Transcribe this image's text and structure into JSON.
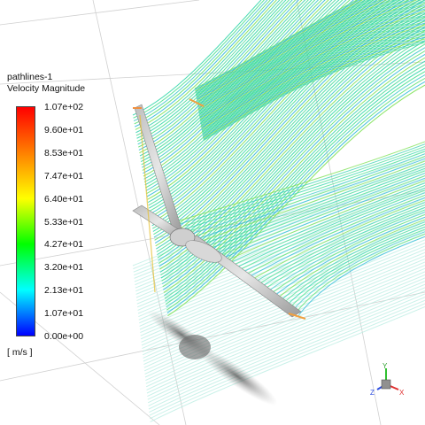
{
  "legend": {
    "title": "pathlines-1",
    "quantity": "Velocity Magnitude",
    "units": "[ m/s ]",
    "tick_labels": [
      "1.07e+02",
      "9.60e+01",
      "8.53e+01",
      "7.47e+01",
      "6.40e+01",
      "5.33e+01",
      "4.27e+01",
      "3.20e+01",
      "2.13e+01",
      "1.07e+01",
      "0.00e+00"
    ],
    "range": [
      0,
      107
    ],
    "colormap": [
      "#ff0000",
      "#ff8000",
      "#ffff00",
      "#00ff00",
      "#00ffff",
      "#0000ff"
    ]
  },
  "scene": {
    "background": "#ffffff",
    "object": "wind-turbine",
    "pathline_color_dominant": "#3ee0a0",
    "shadow_color": "#888888"
  },
  "axes_triad": {
    "labels": [
      "Y",
      "Z",
      "X"
    ],
    "colors": {
      "x": "#e03030",
      "y": "#30c030",
      "z": "#3050e0"
    }
  }
}
